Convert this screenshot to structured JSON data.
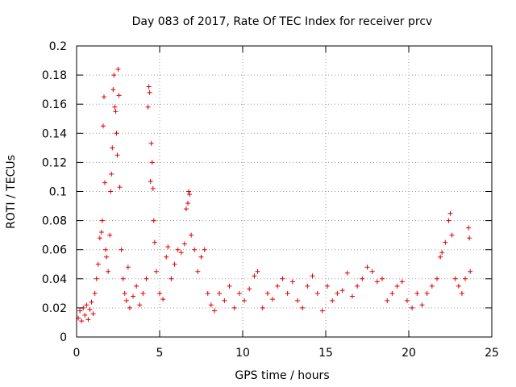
{
  "chart_data": {
    "type": "scatter",
    "title": "Day 083 of 2017, Rate Of TEC Index for receiver prcv",
    "xlabel": "GPS time / hours",
    "ylabel": "ROTI / TECUs",
    "xlim": [
      0,
      25
    ],
    "ylim": [
      0,
      0.2
    ],
    "xticks": [
      0,
      5,
      10,
      15,
      20,
      25
    ],
    "xtick_labels": [
      "0",
      "5",
      "10",
      "15",
      "20",
      "25"
    ],
    "yticks": [
      0,
      0.02,
      0.04,
      0.06,
      0.08,
      0.1,
      0.12,
      0.14,
      0.16,
      0.18,
      0.2
    ],
    "ytick_labels": [
      "0",
      "0.02",
      "0.04",
      "0.06",
      "0.08",
      "0.1",
      "0.12",
      "0.14",
      "0.16",
      "0.18",
      "0.2"
    ],
    "grid": true,
    "marker": "+",
    "colors": {
      "points": "#e00000",
      "grid": "#9a9a9a",
      "axes": "#000000"
    },
    "series": [
      {
        "name": "ROTI",
        "points": [
          [
            0.1,
            0.013
          ],
          [
            0.2,
            0.018
          ],
          [
            0.3,
            0.011
          ],
          [
            0.4,
            0.02
          ],
          [
            0.5,
            0.015
          ],
          [
            0.6,
            0.022
          ],
          [
            0.7,
            0.012
          ],
          [
            0.8,
            0.019
          ],
          [
            0.9,
            0.024
          ],
          [
            1.0,
            0.016
          ],
          [
            1.1,
            0.03
          ],
          [
            1.2,
            0.04
          ],
          [
            1.3,
            0.05
          ],
          [
            1.4,
            0.068
          ],
          [
            1.5,
            0.072
          ],
          [
            1.55,
            0.08
          ],
          [
            1.6,
            0.145
          ],
          [
            1.65,
            0.165
          ],
          [
            1.7,
            0.106
          ],
          [
            1.75,
            0.06
          ],
          [
            1.8,
            0.055
          ],
          [
            1.9,
            0.045
          ],
          [
            2.0,
            0.07
          ],
          [
            2.05,
            0.1
          ],
          [
            2.1,
            0.112
          ],
          [
            2.15,
            0.13
          ],
          [
            2.2,
            0.17
          ],
          [
            2.25,
            0.18
          ],
          [
            2.3,
            0.158
          ],
          [
            2.35,
            0.155
          ],
          [
            2.4,
            0.14
          ],
          [
            2.45,
            0.125
          ],
          [
            2.5,
            0.184
          ],
          [
            2.55,
            0.166
          ],
          [
            2.6,
            0.103
          ],
          [
            2.7,
            0.06
          ],
          [
            2.8,
            0.04
          ],
          [
            2.9,
            0.03
          ],
          [
            3.0,
            0.025
          ],
          [
            3.1,
            0.048
          ],
          [
            3.2,
            0.02
          ],
          [
            3.4,
            0.028
          ],
          [
            3.6,
            0.035
          ],
          [
            3.8,
            0.022
          ],
          [
            4.0,
            0.03
          ],
          [
            4.2,
            0.04
          ],
          [
            4.3,
            0.158
          ],
          [
            4.35,
            0.172
          ],
          [
            4.4,
            0.168
          ],
          [
            4.45,
            0.107
          ],
          [
            4.5,
            0.133
          ],
          [
            4.55,
            0.12
          ],
          [
            4.6,
            0.102
          ],
          [
            4.65,
            0.08
          ],
          [
            4.7,
            0.065
          ],
          [
            4.8,
            0.045
          ],
          [
            5.0,
            0.03
          ],
          [
            5.2,
            0.026
          ],
          [
            5.4,
            0.055
          ],
          [
            5.5,
            0.062
          ],
          [
            5.7,
            0.04
          ],
          [
            5.9,
            0.05
          ],
          [
            6.1,
            0.06
          ],
          [
            6.3,
            0.058
          ],
          [
            6.5,
            0.064
          ],
          [
            6.6,
            0.088
          ],
          [
            6.7,
            0.092
          ],
          [
            6.75,
            0.1
          ],
          [
            6.8,
            0.098
          ],
          [
            6.9,
            0.07
          ],
          [
            7.1,
            0.06
          ],
          [
            7.3,
            0.045
          ],
          [
            7.5,
            0.055
          ],
          [
            7.7,
            0.06
          ],
          [
            7.9,
            0.03
          ],
          [
            8.1,
            0.022
          ],
          [
            8.3,
            0.018
          ],
          [
            8.6,
            0.03
          ],
          [
            8.9,
            0.025
          ],
          [
            9.2,
            0.035
          ],
          [
            9.5,
            0.02
          ],
          [
            9.8,
            0.03
          ],
          [
            10.1,
            0.025
          ],
          [
            10.4,
            0.033
          ],
          [
            10.7,
            0.042
          ],
          [
            10.9,
            0.045
          ],
          [
            11.2,
            0.02
          ],
          [
            11.5,
            0.03
          ],
          [
            11.8,
            0.026
          ],
          [
            12.1,
            0.035
          ],
          [
            12.4,
            0.04
          ],
          [
            12.7,
            0.03
          ],
          [
            13.0,
            0.038
          ],
          [
            13.3,
            0.025
          ],
          [
            13.6,
            0.02
          ],
          [
            13.9,
            0.035
          ],
          [
            14.2,
            0.042
          ],
          [
            14.5,
            0.03
          ],
          [
            14.8,
            0.018
          ],
          [
            15.1,
            0.035
          ],
          [
            15.4,
            0.025
          ],
          [
            15.7,
            0.03
          ],
          [
            16.0,
            0.032
          ],
          [
            16.3,
            0.044
          ],
          [
            16.6,
            0.028
          ],
          [
            16.9,
            0.035
          ],
          [
            17.2,
            0.04
          ],
          [
            17.5,
            0.048
          ],
          [
            17.8,
            0.045
          ],
          [
            18.1,
            0.038
          ],
          [
            18.4,
            0.04
          ],
          [
            18.7,
            0.025
          ],
          [
            19.0,
            0.03
          ],
          [
            19.3,
            0.035
          ],
          [
            19.6,
            0.038
          ],
          [
            19.9,
            0.025
          ],
          [
            20.2,
            0.02
          ],
          [
            20.5,
            0.03
          ],
          [
            20.8,
            0.022
          ],
          [
            21.1,
            0.03
          ],
          [
            21.4,
            0.035
          ],
          [
            21.7,
            0.04
          ],
          [
            21.9,
            0.055
          ],
          [
            22.0,
            0.058
          ],
          [
            22.2,
            0.065
          ],
          [
            22.4,
            0.08
          ],
          [
            22.5,
            0.085
          ],
          [
            22.6,
            0.07
          ],
          [
            22.8,
            0.04
          ],
          [
            23.0,
            0.035
          ],
          [
            23.2,
            0.03
          ],
          [
            23.4,
            0.04
          ],
          [
            23.6,
            0.075
          ],
          [
            23.65,
            0.068
          ],
          [
            23.7,
            0.045
          ]
        ]
      }
    ]
  }
}
